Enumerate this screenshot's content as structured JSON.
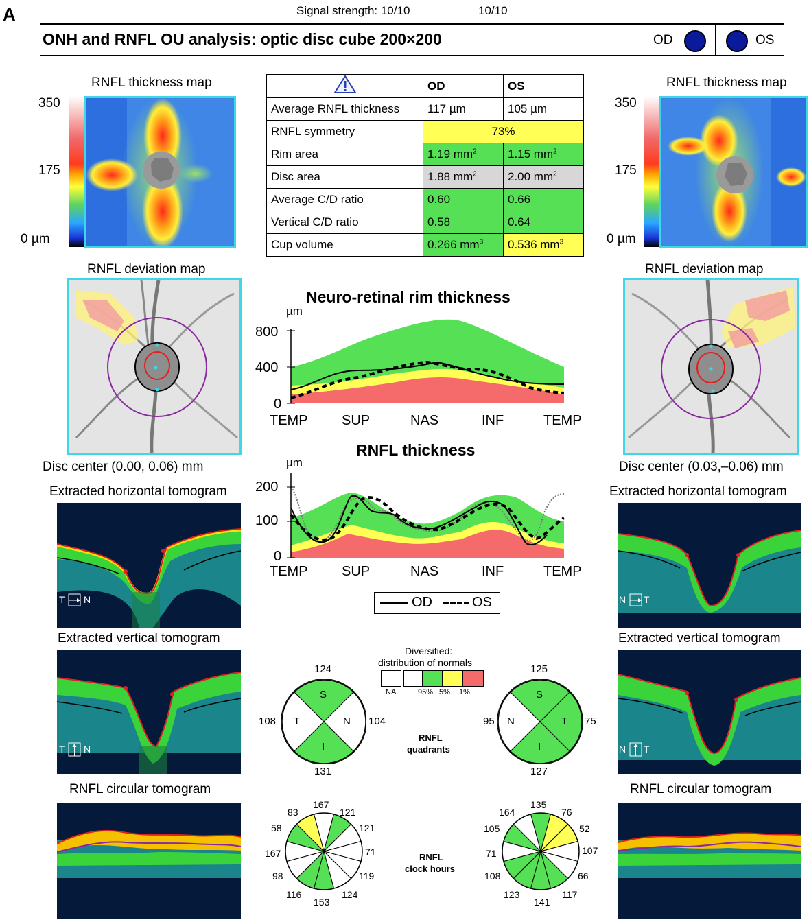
{
  "panel_letter": "A",
  "signal": {
    "label": "Signal strength: 10/10",
    "right": "10/10"
  },
  "header": {
    "title": "ONH and RNFL OU analysis: optic disc cube 200×200",
    "od": "OD",
    "os": "OS"
  },
  "thickness_map": {
    "title": "RNFL thickness map",
    "scale_top": "350",
    "scale_mid": "175",
    "scale_bottom": "0 µm"
  },
  "summary_table": {
    "warning_icon": "warning-triangle-icon",
    "col_od": "OD",
    "col_os": "OS",
    "rows": [
      {
        "label": "Average RNFL thickness",
        "od": "117 µm",
        "os": "105 µm"
      },
      {
        "label": "RNFL symmetry",
        "merged": "73%"
      },
      {
        "label": "Rim area",
        "od": "1.19 mm",
        "od_sup": "2",
        "os": "1.15 mm",
        "os_sup": "2"
      },
      {
        "label": "Disc area",
        "od": "1.88 mm",
        "od_sup": "2",
        "os": "2.00 mm",
        "os_sup": "2"
      },
      {
        "label": "Average C/D ratio",
        "od": "0.60",
        "os": "0.66"
      },
      {
        "label": "Vertical C/D ratio",
        "od": "0.58",
        "os": "0.64"
      },
      {
        "label": "Cup volume",
        "od": "0.266 mm",
        "od_sup": "3",
        "os": "0.536 mm",
        "os_sup": "3"
      }
    ]
  },
  "deviation_map": {
    "title": "RNFL deviation map",
    "od_center": "Disc center (0.00, 0.06) mm",
    "os_center": "Disc center (0.03,–0.06) mm"
  },
  "rim_chart": {
    "title": "Neuro-retinal rim thickness",
    "unit": "µm",
    "yticks": [
      "800",
      "400",
      "0"
    ],
    "xticks": [
      "TEMP",
      "SUP",
      "NAS",
      "INF",
      "TEMP"
    ]
  },
  "rnfl_chart": {
    "title": "RNFL thickness",
    "unit": "µm",
    "yticks": [
      "200",
      "100",
      "0"
    ],
    "xticks": [
      "TEMP",
      "SUP",
      "NAS",
      "INF",
      "TEMP"
    ]
  },
  "line_legend": {
    "od": "OD",
    "os": "OS"
  },
  "tomograms": {
    "horizontal": "Extracted horizontal tomogram",
    "vertical": "Extracted vertical tomogram",
    "circular": "RNFL circular tomogram",
    "od_h": {
      "a": "T",
      "b": "N"
    },
    "od_v": {
      "a": "T",
      "b": "N"
    },
    "os_h": {
      "a": "N",
      "b": "T"
    },
    "os_v": {
      "a": "N",
      "b": "T"
    }
  },
  "normals_legend": {
    "title_1": "Diversified:",
    "title_2": "distribution of normals",
    "na": "NA",
    "p95": "95%",
    "p5": "5%",
    "p1": "1%"
  },
  "quadrants": {
    "label_1": "RNFL",
    "label_2": "quadrants",
    "od": {
      "top": "124",
      "left": "108",
      "right": "104",
      "bottom": "131",
      "s": "S",
      "t": "T",
      "n": "N",
      "i": "I"
    },
    "os": {
      "top": "125",
      "left": "95",
      "right": "75",
      "bottom": "127",
      "s": "S",
      "n": "N",
      "t": "T",
      "i": "I"
    }
  },
  "clock_hours": {
    "label_1": "RNFL",
    "label_2": "clock hours",
    "od": [
      "167",
      "121",
      "121",
      "71",
      "119",
      "124",
      "153",
      "116",
      "98",
      "167",
      "58",
      "83"
    ],
    "os": [
      "135",
      "76",
      "52",
      "107",
      "66",
      "117",
      "141",
      "123",
      "108",
      "71",
      "105",
      "164"
    ]
  },
  "colors": {
    "green": "#55e055",
    "yellow": "#ffff55",
    "red": "#f56a6a",
    "gray": "#d7d7d7",
    "cyan": "#3fd6e6",
    "eye": "#0a1a9a"
  }
}
